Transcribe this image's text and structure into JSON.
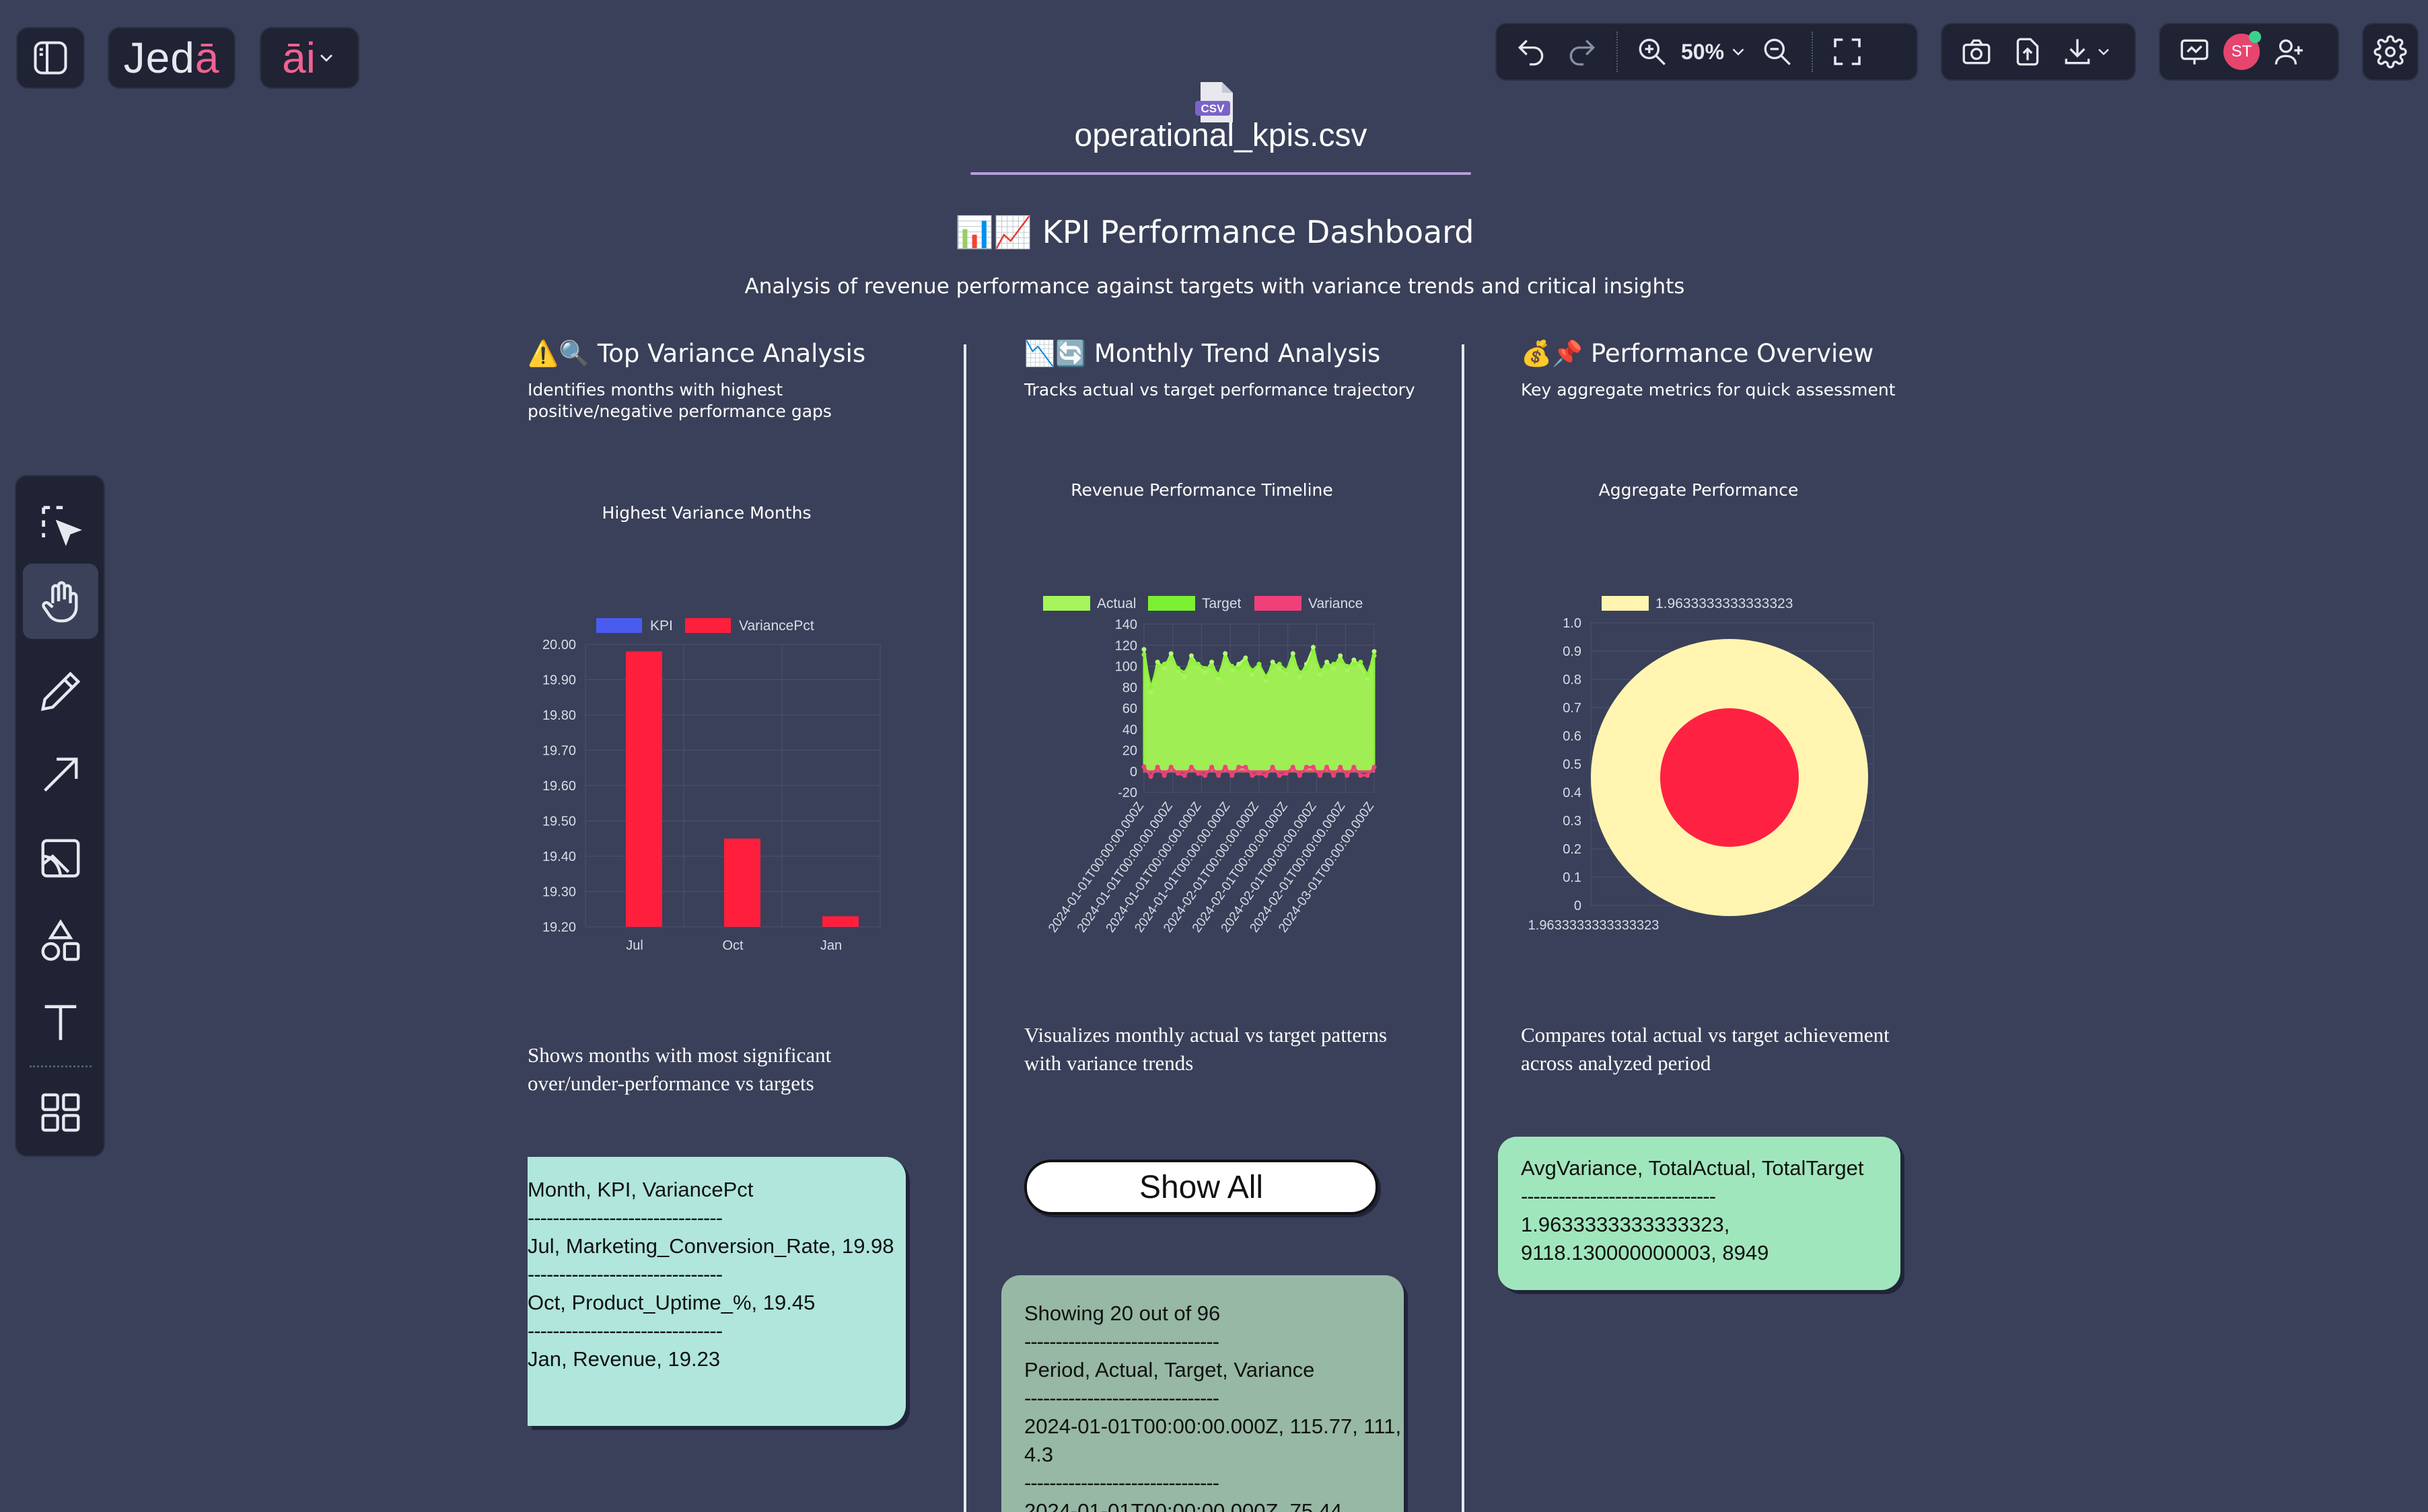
{
  "app": {
    "logo_main": "Jed",
    "logo_accent": "ā",
    "ai_label": "āi"
  },
  "toolbar": {
    "zoom": "50%"
  },
  "user": {
    "initials": "ST"
  },
  "file": {
    "badge": "CSV",
    "name": "operational_kpis.csv"
  },
  "dashboard": {
    "title": "📊📈 KPI Performance Dashboard",
    "subtitle": "Analysis of revenue performance against targets with variance trends and critical insights"
  },
  "columns": [
    {
      "title": "⚠️🔍 Top Variance Analysis",
      "subtitle": "Identifies months with highest positive/negative performance gaps",
      "chart_title": "Highest Variance Months",
      "description": "Shows months with most significant over/under-performance vs targets",
      "card": {
        "header": "Month, KPI, VariancePct",
        "separator": "-------------------------------",
        "rows": [
          "Jul, Marketing_Conversion_Rate, 19.98",
          "Oct, Product_Uptime_%, 19.45",
          "Jan, Revenue, 19.23"
        ]
      }
    },
    {
      "title": "📉🔄 Monthly Trend Analysis",
      "subtitle": "Tracks actual vs target performance trajectory",
      "chart_title": "Revenue Performance Timeline",
      "description": "Visualizes monthly actual vs target patterns with variance trends",
      "button": "Show All",
      "card": {
        "showing": "Showing 20 out of 96",
        "separator": "-------------------------------",
        "header": "Period, Actual, Target, Variance",
        "rows": [
          "2024-01-01T00:00:00.000Z, 115.77, 111, 4.3",
          "2024-01-01T00:00:00.000Z, 75.44"
        ]
      }
    },
    {
      "title": "💰📌 Performance Overview",
      "subtitle": "Key aggregate metrics for quick assessment",
      "chart_title": "Aggregate Performance",
      "description": "Compares total actual vs target achievement across analyzed period",
      "card": {
        "header": "AvgVariance, TotalActual, TotalTarget",
        "separator": "-------------------------------",
        "row": "1.9633333333333323, 9118.130000000003, 8949"
      }
    }
  ],
  "colors": {
    "background": "#3a4059",
    "bar_red": "#ff1f3d",
    "kpi_blue": "#4a5cf0",
    "area_green": "#a6f55c",
    "variance_pink": "#f0407a",
    "pie_outer": "#fff5b0",
    "card_teal": "#b0e6dc",
    "card_sage": "#96b8a4",
    "card_green": "#a0e6bc"
  },
  "chart_data": [
    {
      "type": "bar",
      "title": "Highest Variance Months",
      "categories": [
        "Jul",
        "Oct",
        "Jan"
      ],
      "series": [
        {
          "name": "KPI",
          "values": [
            null,
            null,
            null
          ],
          "color": "#4a5cf0"
        },
        {
          "name": "VariancePct",
          "values": [
            19.98,
            19.45,
            19.23
          ],
          "color": "#ff1f3d"
        }
      ],
      "ylim": [
        19.2,
        20.0
      ],
      "yticks": [
        "20.00",
        "19.90",
        "19.80",
        "19.70",
        "19.60",
        "19.50",
        "19.40",
        "19.30",
        "19.20"
      ],
      "legend": "top",
      "grid": true
    },
    {
      "type": "area",
      "title": "Revenue Performance Timeline",
      "legend": [
        "Actual",
        "Target",
        "Variance"
      ],
      "x_labels": [
        "2024-01-01T00:00:00.000Z",
        "2024-01-01T00:00:00.000Z",
        "2024-01-01T00:00:00.000Z",
        "2024-01-01T00:00:00.000Z",
        "2024-02-01T00:00:00.000Z",
        "2024-02-01T00:00:00.000Z",
        "2024-02-01T00:00:00.000Z",
        "2024-02-01T00:00:00.000Z",
        "2024-03-01T00:00:00.000Z"
      ],
      "yticks": [
        140,
        120,
        100,
        80,
        60,
        40,
        20,
        0,
        -20
      ],
      "ylim": [
        -20,
        140
      ],
      "series": [
        {
          "name": "Actual",
          "values": [
            116,
            75,
            104,
            98,
            112,
            96,
            90,
            110,
            100,
            94,
            104,
            88,
            112,
            96,
            102,
            108,
            92,
            100,
            86,
            104,
            98,
            94,
            112,
            90,
            102,
            118,
            92,
            104,
            98,
            110,
            96,
            106,
            100,
            88,
            114
          ]
        },
        {
          "name": "Target",
          "values": [
            111,
            80,
            100,
            102,
            108,
            98,
            94,
            106,
            102,
            98,
            100,
            92,
            108,
            100,
            98,
            104,
            96,
            102,
            90,
            100,
            102,
            96,
            108,
            94,
            98,
            114,
            96,
            100,
            102,
            106,
            100,
            102,
            104,
            92,
            110
          ]
        },
        {
          "name": "Variance",
          "values": [
            4.3,
            -5,
            4,
            -4,
            4,
            -2,
            -4,
            4,
            -2,
            -4,
            4,
            -4,
            4,
            -4,
            4,
            4,
            -4,
            -2,
            -4,
            4,
            -4,
            -2,
            4,
            -4,
            4,
            4,
            -4,
            4,
            -4,
            4,
            -4,
            4,
            -4,
            -4,
            4
          ]
        }
      ],
      "grid": true
    },
    {
      "type": "pie",
      "title": "Aggregate Performance",
      "legend": [
        "1.9633333333333323"
      ],
      "x_label": "1.9633333333333323",
      "yticks": [
        "1.0",
        "0.9",
        "0.8",
        "0.7",
        "0.6",
        "0.5",
        "0.4",
        "0.3",
        "0.2",
        "0.1",
        "0"
      ],
      "slices": [
        {
          "label": "1.9633333333333323",
          "value": 1.9633333333333323,
          "color": "#fff5b0"
        }
      ],
      "grid": true
    }
  ]
}
